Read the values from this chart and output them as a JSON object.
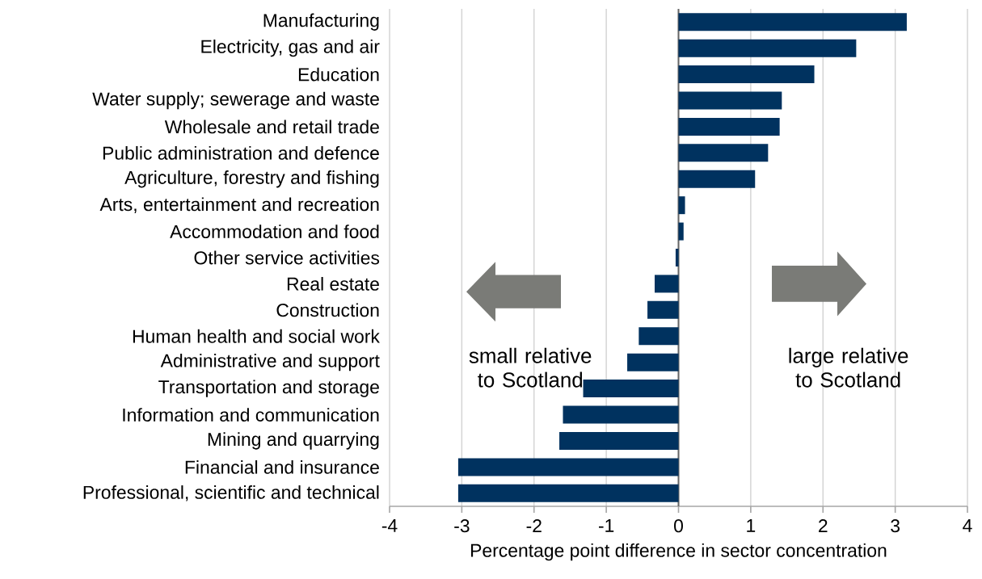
{
  "chart_data": {
    "type": "bar",
    "orientation": "horizontal",
    "xlabel": "Percentage point difference in sector concentration",
    "categories": [
      "Manufacturing",
      "Electricity, gas and air",
      "Education",
      "Water supply; sewerage and waste",
      "Wholesale and retail trade",
      "Public administration and defence",
      "Agriculture, forestry and fishing",
      "Arts, entertainment and recreation",
      "Accommodation and food",
      "Other service activities",
      "Real estate",
      "Construction",
      "Human health and social work",
      "Administrative and support",
      "Transportation and storage",
      "Information and communication",
      "Mining and quarrying",
      "Financial and insurance",
      "Professional, scientific and technical"
    ],
    "values": [
      3.16,
      2.46,
      1.88,
      1.43,
      1.4,
      1.24,
      1.06,
      0.09,
      0.07,
      -0.04,
      -0.33,
      -0.43,
      -0.55,
      -0.71,
      -1.32,
      -1.6,
      -1.65,
      -3.05,
      -3.05
    ],
    "color": "#00325f",
    "xlim": [
      -4,
      4
    ],
    "xticks": [
      -4,
      -3,
      -2,
      -1,
      0,
      1,
      2,
      3,
      4
    ],
    "grid": "x",
    "annotations": [
      "small relative to Scotland",
      "large relative to Scotland"
    ]
  }
}
